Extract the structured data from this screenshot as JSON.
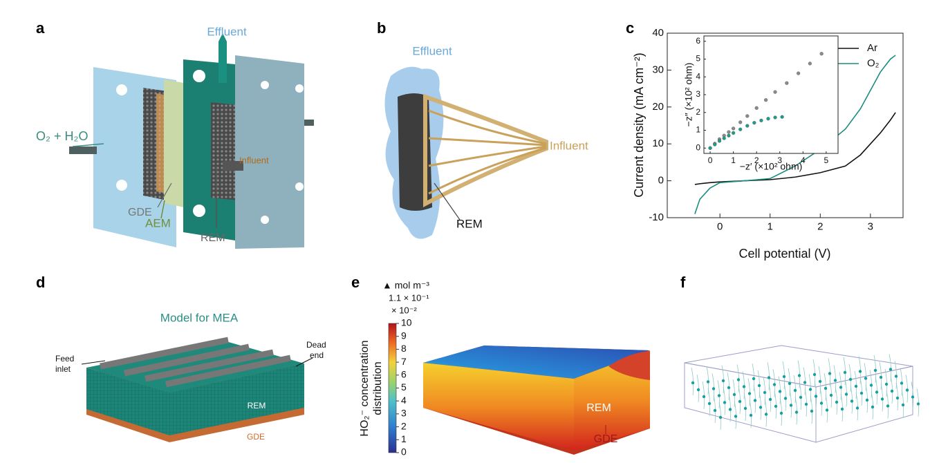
{
  "panels": {
    "a": {
      "label": "a",
      "effluent": "Effluent",
      "feed": "O₂ + H₂O",
      "influent": "Influent",
      "gde": "GDE",
      "aem": "AEM",
      "rem": "REM"
    },
    "b": {
      "label": "b",
      "effluent": "Effluent",
      "influent": "Influent",
      "rem": "REM"
    },
    "c": {
      "label": "c"
    },
    "d": {
      "label": "d",
      "title": "Model for MEA",
      "feed_inlet": [
        "Feed",
        "inlet"
      ],
      "dead_end": [
        "Dead",
        "end"
      ],
      "rem": "REM",
      "gde": "GDE"
    },
    "e": {
      "label": "e",
      "unit": "▲ mol m⁻³",
      "max": "1.1 × 10⁻¹",
      "scale": "× 10⁻²",
      "colorbar_label": [
        "HO₂⁻ concentration",
        "distribution"
      ],
      "colorbar_ticks": [
        0,
        1,
        2,
        3,
        4,
        5,
        6,
        7,
        8,
        9,
        10
      ],
      "colorbar_lim": [
        0,
        10
      ],
      "rem": "REM",
      "gde": "GDE"
    },
    "f": {
      "label": "f"
    }
  },
  "chart_data": [
    {
      "type": "line",
      "xlabel": "Cell potential (V)",
      "ylabel": "Current density (mA cm⁻²)",
      "x": [
        -0.5,
        -0.4,
        -0.2,
        0,
        0.5,
        1,
        1.5,
        2,
        2.5,
        2.8,
        3,
        3.2,
        3.4,
        3.5
      ],
      "series": [
        {
          "name": "Ar",
          "color": "#111111",
          "values": [
            -1,
            -0.8,
            -0.5,
            -0.3,
            0,
            0.3,
            1,
            2.2,
            4,
            7,
            10,
            13,
            16.5,
            18.5
          ]
        },
        {
          "name": "O₂",
          "color": "#1a8c80",
          "values": [
            -9,
            -5,
            -2,
            -0.5,
            0,
            0.6,
            4,
            8.5,
            14,
            19.5,
            24.5,
            29.5,
            33,
            34
          ]
        }
      ],
      "xlim": [
        -1.05,
        3.65
      ],
      "ylim": [
        -10,
        40
      ],
      "xticks": [
        0,
        1,
        2,
        3
      ],
      "yticks": [
        -10,
        0,
        10,
        20,
        30,
        40
      ],
      "legend": "upper right"
    },
    {
      "type": "scatter",
      "xlabel": "−z′ (×10² ohm)",
      "ylabel": "−z″ (×10² ohm)",
      "series": [
        {
          "color": "#8a8a8a",
          "x": [
            0,
            0.2,
            0.4,
            0.6,
            0.8,
            1,
            1.3,
            1.6,
            2,
            2.4,
            2.8,
            3.3,
            3.8,
            4.3,
            4.8
          ],
          "values": [
            0,
            0.25,
            0.5,
            0.7,
            0.9,
            1.1,
            1.45,
            1.8,
            2.25,
            2.7,
            3.15,
            3.65,
            4.2,
            4.75,
            5.3
          ]
        },
        {
          "color": "#1a9e8c",
          "x": [
            0,
            0.2,
            0.4,
            0.6,
            0.8,
            1,
            1.3,
            1.6,
            1.9,
            2.2,
            2.5,
            2.8,
            3.1
          ],
          "values": [
            0,
            0.2,
            0.4,
            0.55,
            0.7,
            0.85,
            1.05,
            1.25,
            1.42,
            1.55,
            1.65,
            1.72,
            1.75
          ]
        }
      ],
      "xlim": [
        -0.27,
        5.51
      ],
      "ylim": [
        -0.3,
        6.3
      ],
      "xticks": [
        0,
        1,
        2,
        3,
        4,
        5
      ],
      "yticks": [
        0,
        1,
        2,
        3,
        4,
        5,
        6
      ]
    }
  ]
}
